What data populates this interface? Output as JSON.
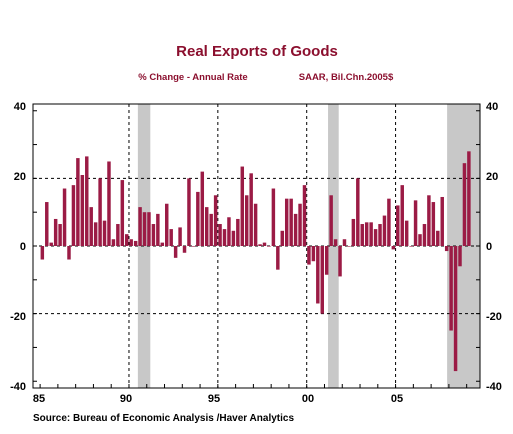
{
  "chart_data": {
    "type": "bar",
    "title": "Real Exports of Goods",
    "subtitle_left": "% Change - Annual Rate",
    "subtitle_right": "SAAR, Bil.Chn.2005$",
    "source": "Source:  Bureau of Economic Analysis /Haver Analytics",
    "x_tick_labels": [
      "85",
      "90",
      "95",
      "00",
      "05"
    ],
    "y_tick_labels": [
      "40",
      "20",
      "0",
      "-20",
      "-40"
    ],
    "y_ticks": [
      40,
      20,
      0,
      -20,
      -40
    ],
    "ylim": [
      -42,
      42
    ],
    "xlim": [
      1984.6,
      2009.75
    ],
    "grid": true,
    "colors": {
      "bar": "#9b1b45",
      "recession": "#c8c8c8",
      "title": "#8b0f2e"
    },
    "recessions": [
      [
        1990.5,
        1991.2
      ],
      [
        2001.2,
        2001.8
      ],
      [
        2007.9,
        2009.75
      ]
    ],
    "x_start": 1985.0,
    "quarter_step": 0.25,
    "values": [
      -4,
      13,
      1,
      8,
      6.5,
      17,
      -4,
      18,
      26,
      21,
      26.5,
      11.5,
      7,
      20,
      7.5,
      25,
      2,
      6.5,
      19.5,
      3.5,
      2,
      1.5,
      11.5,
      10,
      10,
      6.5,
      9.5,
      1,
      12.5,
      5,
      -3.5,
      5.5,
      -2,
      20,
      0,
      16,
      22,
      11.5,
      9.5,
      15,
      6.5,
      5,
      8.5,
      4.5,
      8,
      23.5,
      15,
      21.5,
      12.5,
      0.5,
      1,
      0,
      17,
      -7,
      4.5,
      14,
      14,
      9.5,
      12.5,
      18,
      -5.5,
      -4.5,
      -17,
      -20,
      -8.5,
      15,
      2,
      -9,
      2,
      0,
      8,
      20,
      6.5,
      7,
      7,
      5,
      6.5,
      9,
      14,
      -1,
      12,
      18,
      7.5,
      0,
      13.5,
      3.5,
      6.5,
      15,
      13,
      4.5,
      14.5,
      -1.5,
      -25,
      -37,
      -6,
      24.5,
      28
    ]
  }
}
